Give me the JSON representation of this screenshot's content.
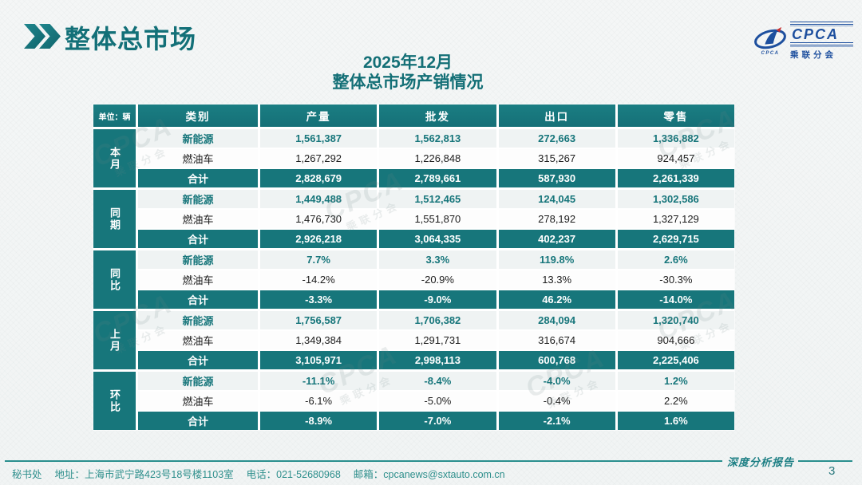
{
  "header": {
    "section_title": "整体总市场",
    "subtitle_line1": "2025年12月",
    "subtitle_line2": "整体总市场产销情况"
  },
  "logo": {
    "cpca": "CPCA",
    "chinese": "乘联分会",
    "swoosh_caption": "CPCA"
  },
  "watermark": {
    "big": "CPCA",
    "small": "乘联分会"
  },
  "table": {
    "unit_label": "单位：辆",
    "columns": [
      "类别",
      "产量",
      "批发",
      "出口",
      "零售"
    ],
    "groups": [
      {
        "label": "本月",
        "rows": [
          {
            "category": "新能源",
            "values": [
              "1,561,387",
              "1,562,813",
              "272,663",
              "1,336,882"
            ]
          },
          {
            "category": "燃油车",
            "values": [
              "1,267,292",
              "1,226,848",
              "315,267",
              "924,457"
            ]
          },
          {
            "category": "合计",
            "values": [
              "2,828,679",
              "2,789,661",
              "587,930",
              "2,261,339"
            ]
          }
        ]
      },
      {
        "label": "同期",
        "rows": [
          {
            "category": "新能源",
            "values": [
              "1,449,488",
              "1,512,465",
              "124,045",
              "1,302,586"
            ]
          },
          {
            "category": "燃油车",
            "values": [
              "1,476,730",
              "1,551,870",
              "278,192",
              "1,327,129"
            ]
          },
          {
            "category": "合计",
            "values": [
              "2,926,218",
              "3,064,335",
              "402,237",
              "2,629,715"
            ]
          }
        ]
      },
      {
        "label": "同比",
        "rows": [
          {
            "category": "新能源",
            "values": [
              "7.7%",
              "3.3%",
              "119.8%",
              "2.6%"
            ]
          },
          {
            "category": "燃油车",
            "values": [
              "-14.2%",
              "-20.9%",
              "13.3%",
              "-30.3%"
            ]
          },
          {
            "category": "合计",
            "values": [
              "-3.3%",
              "-9.0%",
              "46.2%",
              "-14.0%"
            ]
          }
        ]
      },
      {
        "label": "上月",
        "rows": [
          {
            "category": "新能源",
            "values": [
              "1,756,587",
              "1,706,382",
              "284,094",
              "1,320,740"
            ]
          },
          {
            "category": "燃油车",
            "values": [
              "1,349,384",
              "1,291,731",
              "316,674",
              "904,666"
            ]
          },
          {
            "category": "合计",
            "values": [
              "3,105,971",
              "2,998,113",
              "600,768",
              "2,225,406"
            ]
          }
        ]
      },
      {
        "label": "环比",
        "rows": [
          {
            "category": "新能源",
            "values": [
              "-11.1%",
              "-8.4%",
              "-4.0%",
              "1.2%"
            ]
          },
          {
            "category": "燃油车",
            "values": [
              "-6.1%",
              "-5.0%",
              "-0.4%",
              "2.2%"
            ]
          },
          {
            "category": "合计",
            "values": [
              "-8.9%",
              "-7.0%",
              "-2.1%",
              "1.6%"
            ]
          }
        ]
      }
    ]
  },
  "footer": {
    "secretariat": "秘书处",
    "address": "地址：上海市武宁路423号18号楼1103室",
    "phone": "电话：021-52680968",
    "email": "邮箱：cpcanews@sxtauto.com.cn",
    "report_label": "深度分析报告",
    "page_number": "3"
  },
  "colors": {
    "teal": "#17767b",
    "logo_blue": "#1d4f9e",
    "footer_teal": "#2e8f8c"
  }
}
